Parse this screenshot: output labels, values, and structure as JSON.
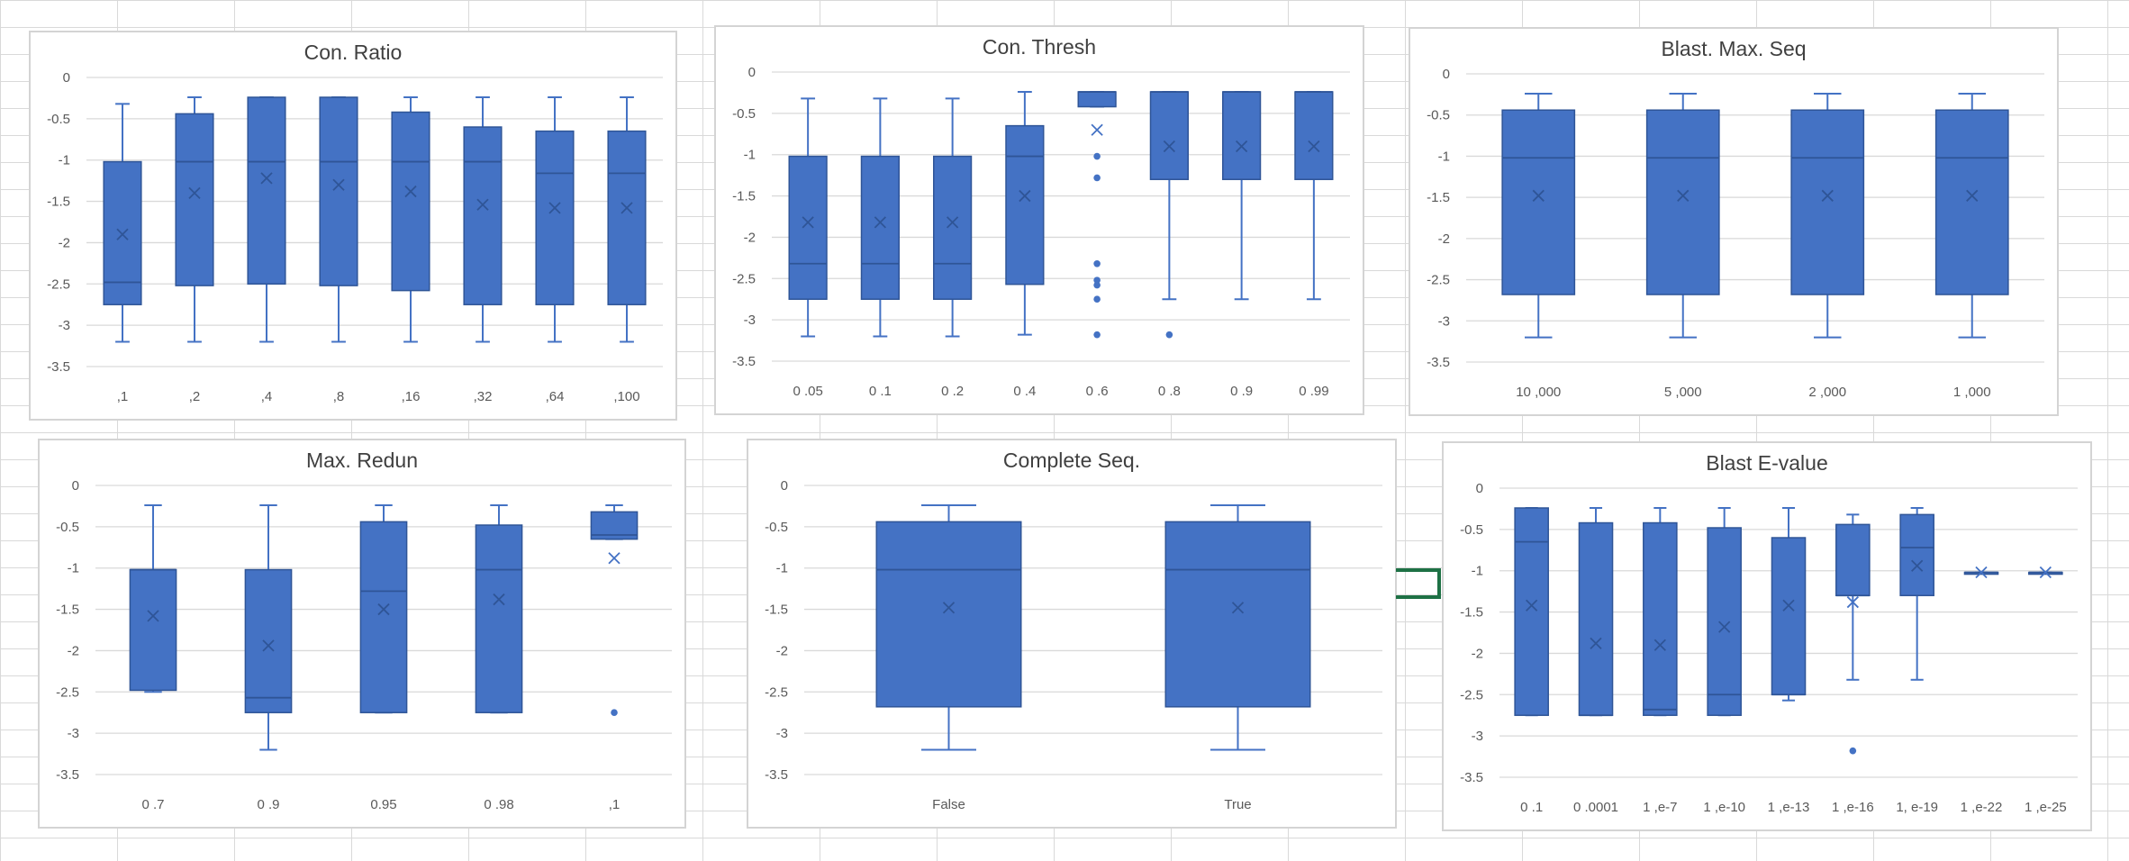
{
  "colors": {
    "box": "#4472c4",
    "box_edge": "#2f5597",
    "axis_text": "#595959",
    "grid": "#d9d9d9",
    "title": "#404040"
  },
  "chart_data": [
    {
      "type": "box",
      "title": "Con. Ratio",
      "ylim": [
        -3.5,
        0
      ],
      "yticks": [
        "0",
        "-0.5",
        "-1",
        "-1.5",
        "-2",
        "-2.5",
        "-3",
        "-3.5"
      ],
      "categories": [
        ",1",
        ",2",
        ",4",
        ",8",
        ",16",
        ",32",
        ",64",
        ",100"
      ],
      "boxes": [
        {
          "min": -3.2,
          "q1": -2.75,
          "median": -2.48,
          "q3": -1.02,
          "max": -0.32,
          "mean": -1.9,
          "outliers": []
        },
        {
          "min": -3.2,
          "q1": -2.52,
          "median": -1.02,
          "q3": -0.44,
          "max": -0.24,
          "mean": -1.4,
          "outliers": []
        },
        {
          "min": -3.2,
          "q1": -2.5,
          "median": -1.02,
          "q3": -0.24,
          "max": -0.24,
          "mean": -1.22,
          "outliers": []
        },
        {
          "min": -3.2,
          "q1": -2.52,
          "median": -1.02,
          "q3": -0.24,
          "max": -0.24,
          "mean": -1.3,
          "outliers": []
        },
        {
          "min": -3.2,
          "q1": -2.58,
          "median": -1.02,
          "q3": -0.42,
          "max": -0.24,
          "mean": -1.38,
          "outliers": []
        },
        {
          "min": -3.2,
          "q1": -2.75,
          "median": -1.02,
          "q3": -0.6,
          "max": -0.24,
          "mean": -1.54,
          "outliers": []
        },
        {
          "min": -3.2,
          "q1": -2.75,
          "median": -1.16,
          "q3": -0.65,
          "max": -0.24,
          "mean": -1.58,
          "outliers": []
        },
        {
          "min": -3.2,
          "q1": -2.75,
          "median": -1.16,
          "q3": -0.65,
          "max": -0.24,
          "mean": -1.58,
          "outliers": []
        }
      ]
    },
    {
      "type": "box",
      "title": "Con. Thresh",
      "ylim": [
        -3.5,
        0
      ],
      "yticks": [
        "0",
        "-0.5",
        "-1",
        "-1.5",
        "-2",
        "-2.5",
        "-3",
        "-3.5"
      ],
      "categories": [
        "0 .05",
        "0 .1",
        "0 .2",
        "0 .4",
        "0 .6",
        "0 .8",
        "0 .9",
        "0 .99"
      ],
      "boxes": [
        {
          "min": -3.2,
          "q1": -2.75,
          "median": -2.32,
          "q3": -1.02,
          "max": -0.32,
          "mean": -1.82,
          "outliers": []
        },
        {
          "min": -3.2,
          "q1": -2.75,
          "median": -2.32,
          "q3": -1.02,
          "max": -0.32,
          "mean": -1.82,
          "outliers": []
        },
        {
          "min": -3.2,
          "q1": -2.75,
          "median": -2.32,
          "q3": -1.02,
          "max": -0.32,
          "mean": -1.82,
          "outliers": []
        },
        {
          "min": -3.18,
          "q1": -2.57,
          "median": -1.02,
          "q3": -0.65,
          "max": -0.24,
          "mean": -1.5,
          "outliers": []
        },
        {
          "min": -0.42,
          "q1": -0.42,
          "median": -0.24,
          "q3": -0.24,
          "max": -0.24,
          "mean": -0.7,
          "outliers": [
            -1.02,
            -1.28,
            -2.32,
            -2.52,
            -2.58,
            -2.75,
            -3.18
          ]
        },
        {
          "min": -2.75,
          "q1": -1.3,
          "median": -0.24,
          "q3": -0.24,
          "max": -0.24,
          "mean": -0.9,
          "outliers": [
            -3.18
          ]
        },
        {
          "min": -2.75,
          "q1": -1.3,
          "median": -0.24,
          "q3": -0.24,
          "max": -0.24,
          "mean": -0.9,
          "outliers": []
        },
        {
          "min": -2.75,
          "q1": -1.3,
          "median": -0.24,
          "q3": -0.24,
          "max": -0.24,
          "mean": -0.9,
          "outliers": []
        }
      ]
    },
    {
      "type": "box",
      "title": "Blast. Max. Seq",
      "ylim": [
        -3.5,
        0
      ],
      "yticks": [
        "0",
        "-0.5",
        "-1",
        "-1.5",
        "-2",
        "-2.5",
        "-3",
        "-3.5"
      ],
      "categories": [
        "10 ,000",
        "5 ,000",
        "2 ,000",
        "1 ,000"
      ],
      "boxes": [
        {
          "min": -3.2,
          "q1": -2.68,
          "median": -1.02,
          "q3": -0.44,
          "max": -0.24,
          "mean": -1.48,
          "outliers": []
        },
        {
          "min": -3.2,
          "q1": -2.68,
          "median": -1.02,
          "q3": -0.44,
          "max": -0.24,
          "mean": -1.48,
          "outliers": []
        },
        {
          "min": -3.2,
          "q1": -2.68,
          "median": -1.02,
          "q3": -0.44,
          "max": -0.24,
          "mean": -1.48,
          "outliers": []
        },
        {
          "min": -3.2,
          "q1": -2.68,
          "median": -1.02,
          "q3": -0.44,
          "max": -0.24,
          "mean": -1.48,
          "outliers": []
        }
      ]
    },
    {
      "type": "box",
      "title": "Max. Redun",
      "ylim": [
        -3.5,
        0
      ],
      "yticks": [
        "0",
        "-0.5",
        "-1",
        "-1.5",
        "-2",
        "-2.5",
        "-3",
        "-3.5"
      ],
      "categories": [
        "0 .7",
        "0 .9",
        "0.95",
        "0 .98",
        ",1"
      ],
      "boxes": [
        {
          "min": -2.5,
          "q1": -2.48,
          "median": -1.02,
          "q3": -1.02,
          "max": -0.24,
          "mean": -1.58,
          "outliers": []
        },
        {
          "min": -3.2,
          "q1": -2.75,
          "median": -2.57,
          "q3": -1.02,
          "max": -0.24,
          "mean": -1.94,
          "outliers": []
        },
        {
          "min": -2.75,
          "q1": -2.75,
          "median": -1.28,
          "q3": -0.44,
          "max": -0.24,
          "mean": -1.5,
          "outliers": []
        },
        {
          "min": -2.75,
          "q1": -2.75,
          "median": -1.02,
          "q3": -0.48,
          "max": -0.24,
          "mean": -1.38,
          "outliers": []
        },
        {
          "min": -0.65,
          "q1": -0.65,
          "median": -0.6,
          "q3": -0.32,
          "max": -0.24,
          "mean": -0.88,
          "outliers": [
            -2.75
          ]
        }
      ]
    },
    {
      "type": "box",
      "title": "Complete Seq.",
      "ylim": [
        -3.5,
        0
      ],
      "yticks": [
        "0",
        "-0.5",
        "-1",
        "-1.5",
        "-2",
        "-2.5",
        "-3",
        "-3.5"
      ],
      "categories": [
        "False",
        "True"
      ],
      "boxes": [
        {
          "min": -3.2,
          "q1": -2.68,
          "median": -1.02,
          "q3": -0.44,
          "max": -0.24,
          "mean": -1.48,
          "outliers": []
        },
        {
          "min": -3.2,
          "q1": -2.68,
          "median": -1.02,
          "q3": -0.44,
          "max": -0.24,
          "mean": -1.48,
          "outliers": []
        }
      ]
    },
    {
      "type": "box",
      "title": "Blast E-value",
      "ylim": [
        -3.5,
        0
      ],
      "yticks": [
        "0",
        "-0.5",
        "-1",
        "-1.5",
        "-2",
        "-2.5",
        "-3",
        "-3.5"
      ],
      "categories": [
        "0 .1",
        "0 .0001",
        "1 ,e-7",
        "1 ,e-10",
        "1 ,e-13",
        "1 ,e-16",
        "1, e-19",
        "1 ,e-22",
        "1 ,e-25"
      ],
      "boxes": [
        {
          "min": -2.75,
          "q1": -2.75,
          "median": -0.65,
          "q3": -0.24,
          "max": -0.24,
          "mean": -1.42,
          "outliers": []
        },
        {
          "min": -2.75,
          "q1": -2.75,
          "median": -2.75,
          "q3": -0.42,
          "max": -0.24,
          "mean": -1.88,
          "outliers": []
        },
        {
          "min": -2.75,
          "q1": -2.75,
          "median": -2.68,
          "q3": -0.42,
          "max": -0.24,
          "mean": -1.9,
          "outliers": []
        },
        {
          "min": -2.75,
          "q1": -2.75,
          "median": -2.5,
          "q3": -0.48,
          "max": -0.24,
          "mean": -1.68,
          "outliers": []
        },
        {
          "min": -2.57,
          "q1": -2.5,
          "median": -2.5,
          "q3": -0.6,
          "max": -0.24,
          "mean": -1.42,
          "outliers": []
        },
        {
          "min": -2.32,
          "q1": -1.3,
          "median": -1.3,
          "q3": -0.44,
          "max": -0.32,
          "mean": -1.38,
          "outliers": [
            -3.18
          ]
        },
        {
          "min": -2.32,
          "q1": -1.3,
          "median": -0.72,
          "q3": -0.32,
          "max": -0.24,
          "mean": -0.94,
          "outliers": []
        },
        {
          "min": -1.02,
          "q1": -1.02,
          "median": -1.02,
          "q3": -1.02,
          "max": -1.02,
          "mean": -1.02,
          "outliers": []
        },
        {
          "min": -1.02,
          "q1": -1.02,
          "median": -1.02,
          "q3": -1.02,
          "max": -1.02,
          "mean": -1.02,
          "outliers": []
        }
      ]
    }
  ]
}
